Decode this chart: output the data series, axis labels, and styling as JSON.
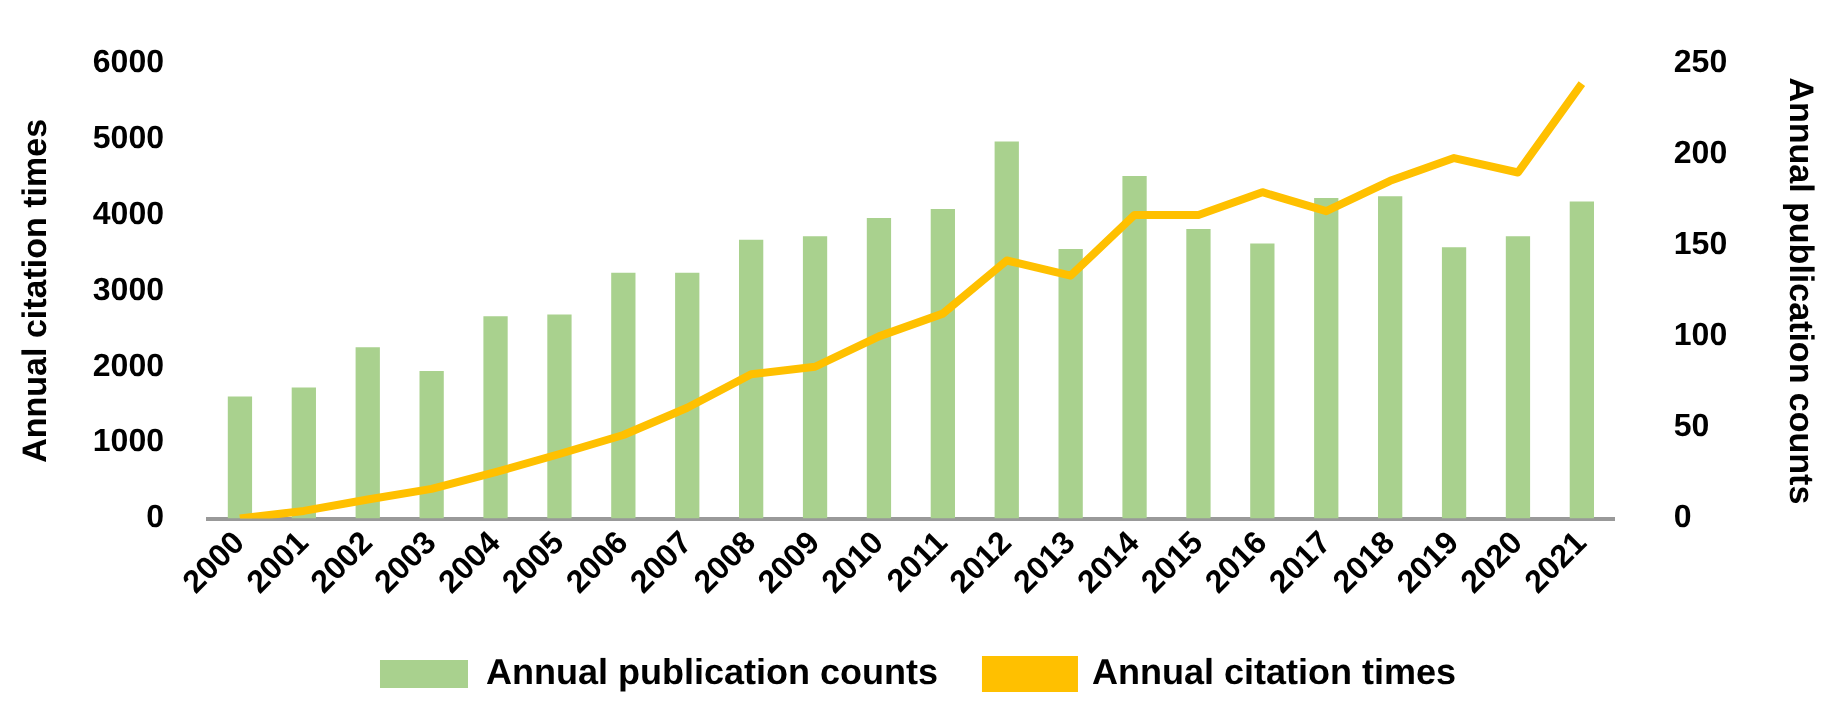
{
  "chart_data": {
    "type": "bar",
    "categories": [
      "2000",
      "2001",
      "2002",
      "2003",
      "2004",
      "2005",
      "2006",
      "2007",
      "2008",
      "2009",
      "2010",
      "2011",
      "2012",
      "2013",
      "2014",
      "2015",
      "2016",
      "2017",
      "2018",
      "2019",
      "2020",
      "2021"
    ],
    "ylabel": "Annual citation times",
    "y2label": "Annual publication counts",
    "ylim": [
      0,
      6000
    ],
    "yticks": [
      0,
      1000,
      2000,
      3000,
      4000,
      5000,
      6000
    ],
    "y2lim": [
      0,
      250
    ],
    "y2ticks": [
      0,
      50,
      100,
      150,
      200,
      250
    ],
    "grid": false,
    "legend": "bottom",
    "series": [
      {
        "name": "Annual publication counts",
        "axis": "y2",
        "color": "#a9d18e",
        "values": [
          67,
          72,
          94,
          81,
          111,
          112,
          135,
          135,
          153,
          155,
          165,
          170,
          207,
          148,
          188,
          159,
          151,
          176,
          177,
          149,
          155,
          174
        ]
      },
      {
        "name": "Annual citation times",
        "type": "line",
        "axis": "y",
        "color": "#ffc000",
        "marker": "none",
        "line_style": "solid",
        "values": [
          0,
          100,
          250,
          390,
          610,
          850,
          1100,
          1460,
          1900,
          2000,
          2400,
          2700,
          3400,
          3200,
          4000,
          4000,
          4300,
          4050,
          4450,
          4750,
          4560,
          5730
        ]
      }
    ]
  }
}
